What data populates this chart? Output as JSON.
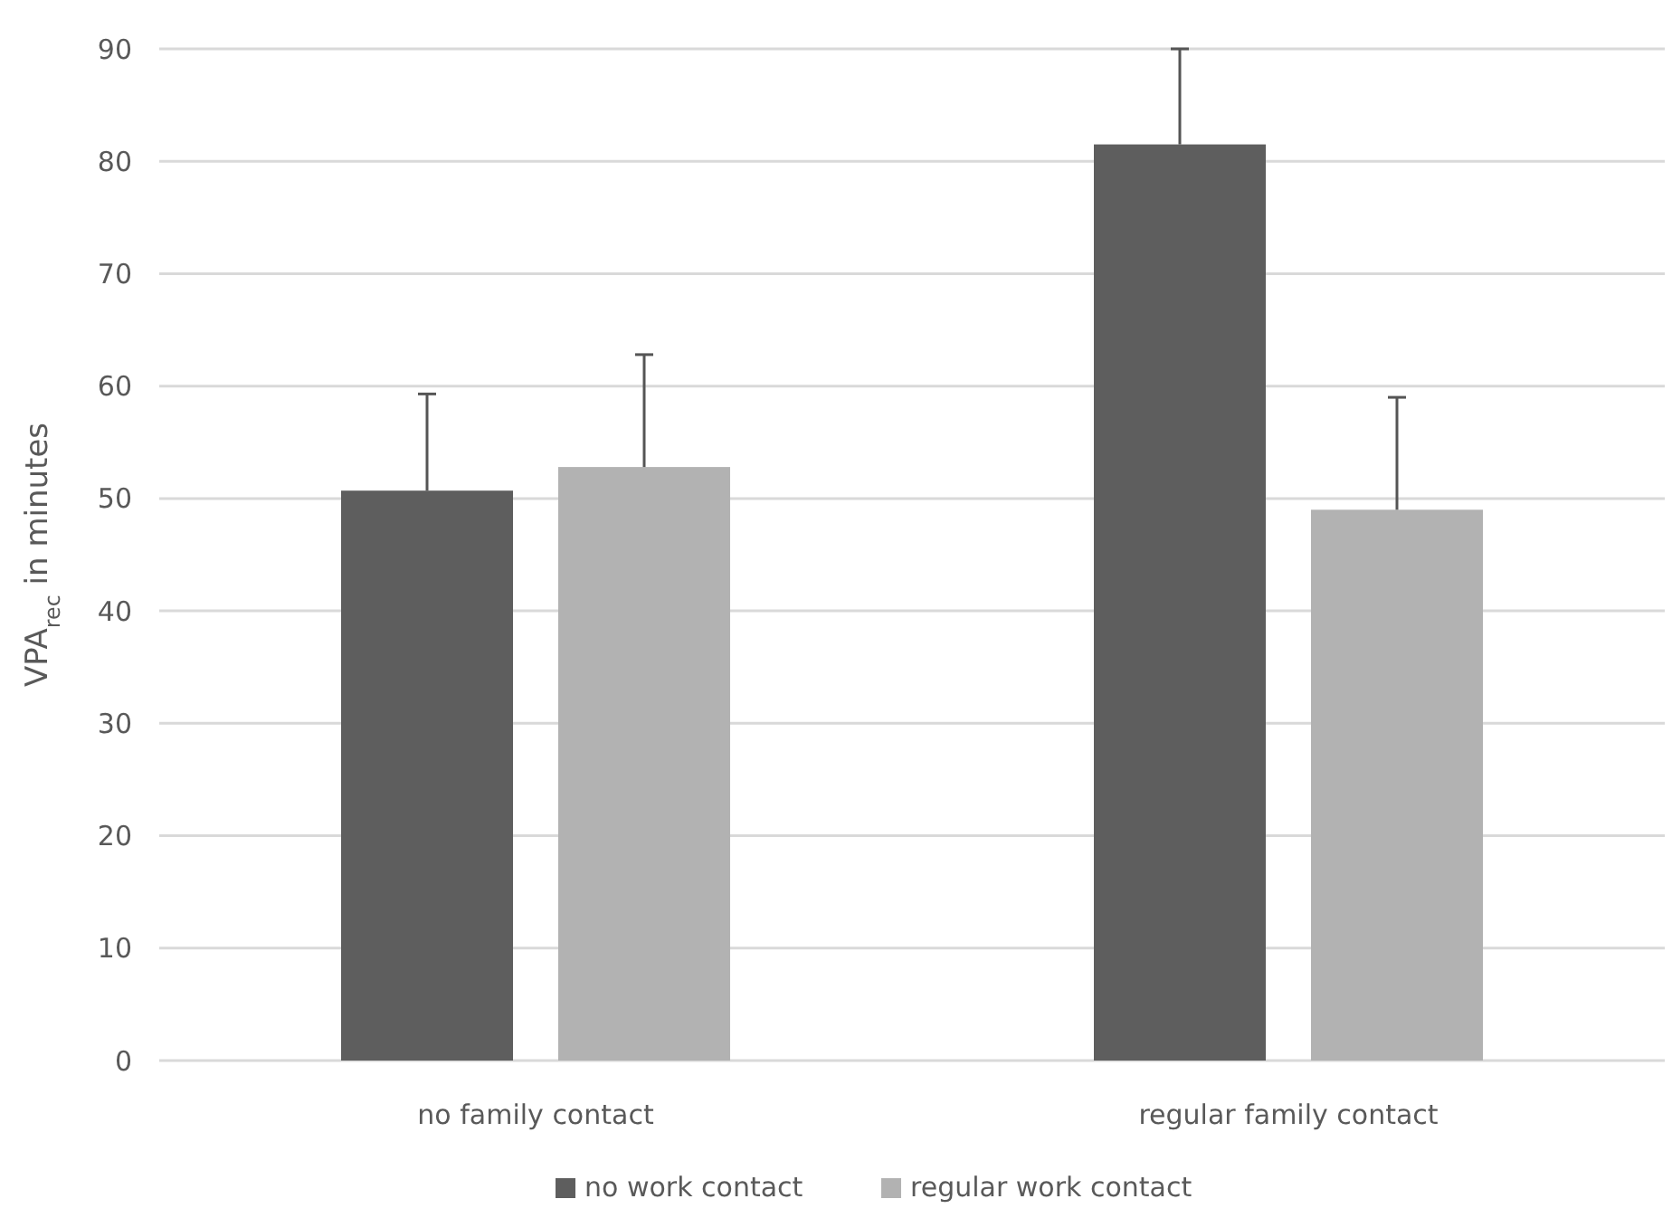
{
  "chart_data": {
    "type": "bar",
    "ylabel": "VPA$_{rec}$ in minutes",
    "categories": [
      "no family contact",
      "regular family contact"
    ],
    "series": [
      {
        "name": "no work contact",
        "color": "#5e5e5e",
        "values": [
          50.7,
          81.5
        ],
        "errors": [
          [
            50.7,
            59.3
          ],
          [
            81.5,
            90
          ]
        ]
      },
      {
        "name": "regular work contact",
        "color": "#b2b2b2",
        "values": [
          52.8,
          49
        ],
        "errors": [
          [
            52.8,
            62.8
          ],
          [
            49,
            59
          ]
        ]
      }
    ],
    "ylim": [
      0,
      90
    ],
    "yticks": [
      0,
      10,
      20,
      30,
      40,
      50,
      60,
      70,
      80,
      90
    ],
    "grid": "y",
    "legend": "bottom"
  }
}
